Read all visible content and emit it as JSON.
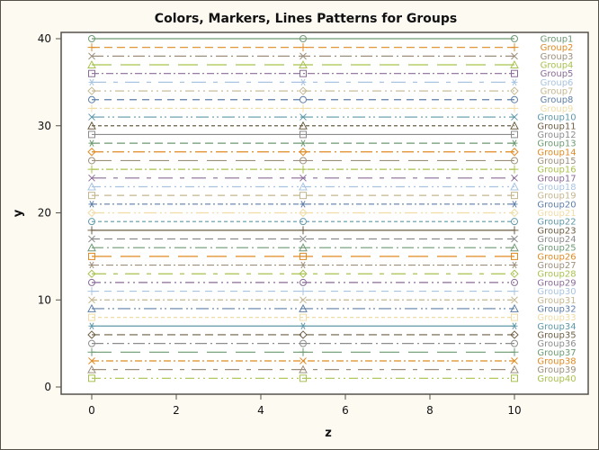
{
  "chart_data": {
    "type": "line",
    "title": "Colors, Markers, Lines Patterns for Groups",
    "xlabel": "z",
    "ylabel": "y",
    "xlim": [
      -0.7,
      11.8
    ],
    "ylim": [
      0,
      40.7
    ],
    "xticks": [
      0,
      2,
      4,
      6,
      8,
      10
    ],
    "yticks": [
      0,
      10,
      20,
      30,
      40
    ],
    "x": [
      0,
      5,
      10
    ],
    "grid": false,
    "legend_position": "inside-right (end labels)",
    "colors": [
      "#6c9a72",
      "#e08a22",
      "#9d8f7c",
      "#a8c24e",
      "#8a6b95",
      "#a8c4e0",
      "#c4b68e",
      "#5e7fa8",
      "#f0dca4",
      "#5e98a8",
      "#6c5d42",
      "#8c8c8c"
    ],
    "markers": [
      "circle",
      "plus",
      "x",
      "triangle",
      "square",
      "asterisk",
      "diamond"
    ],
    "line_patterns": [
      "solid",
      "dash",
      "longdashdot",
      "longdash",
      "dashdot",
      "longshort",
      "dashdotdot",
      "mediumdash",
      "shortdashdot",
      "longdashdotdot",
      "shortdash"
    ],
    "series": [
      {
        "name": "Group1",
        "values": [
          40,
          40,
          40
        ]
      },
      {
        "name": "Group2",
        "values": [
          39,
          39,
          39
        ]
      },
      {
        "name": "Group3",
        "values": [
          38,
          38,
          38
        ]
      },
      {
        "name": "Group4",
        "values": [
          37,
          37,
          37
        ]
      },
      {
        "name": "Group5",
        "values": [
          36,
          36,
          36
        ]
      },
      {
        "name": "Group6",
        "values": [
          35,
          35,
          35
        ]
      },
      {
        "name": "Group7",
        "values": [
          34,
          34,
          34
        ]
      },
      {
        "name": "Group8",
        "values": [
          33,
          33,
          33
        ]
      },
      {
        "name": "Group9",
        "values": [
          32,
          32,
          32
        ]
      },
      {
        "name": "Group10",
        "values": [
          31,
          31,
          31
        ]
      },
      {
        "name": "Group11",
        "values": [
          30,
          30,
          30
        ]
      },
      {
        "name": "Group12",
        "values": [
          29,
          29,
          29
        ]
      },
      {
        "name": "Group13",
        "values": [
          28,
          28,
          28
        ]
      },
      {
        "name": "Group14",
        "values": [
          27,
          27,
          27
        ]
      },
      {
        "name": "Group15",
        "values": [
          26,
          26,
          26
        ]
      },
      {
        "name": "Group16",
        "values": [
          25,
          25,
          25
        ]
      },
      {
        "name": "Group17",
        "values": [
          24,
          24,
          24
        ]
      },
      {
        "name": "Group18",
        "values": [
          23,
          23,
          23
        ]
      },
      {
        "name": "Group19",
        "values": [
          22,
          22,
          22
        ]
      },
      {
        "name": "Group20",
        "values": [
          21,
          21,
          21
        ]
      },
      {
        "name": "Group21",
        "values": [
          20,
          20,
          20
        ]
      },
      {
        "name": "Group22",
        "values": [
          19,
          19,
          19
        ]
      },
      {
        "name": "Group23",
        "values": [
          18,
          18,
          18
        ]
      },
      {
        "name": "Group24",
        "values": [
          17,
          17,
          17
        ]
      },
      {
        "name": "Group25",
        "values": [
          16,
          16,
          16
        ]
      },
      {
        "name": "Group26",
        "values": [
          15,
          15,
          15
        ]
      },
      {
        "name": "Group27",
        "values": [
          14,
          14,
          14
        ]
      },
      {
        "name": "Group28",
        "values": [
          13,
          13,
          13
        ]
      },
      {
        "name": "Group29",
        "values": [
          12,
          12,
          12
        ]
      },
      {
        "name": "Group30",
        "values": [
          11,
          11,
          11
        ]
      },
      {
        "name": "Group31",
        "values": [
          10,
          10,
          10
        ]
      },
      {
        "name": "Group32",
        "values": [
          9,
          9,
          9
        ]
      },
      {
        "name": "Group33",
        "values": [
          8,
          8,
          8
        ]
      },
      {
        "name": "Group34",
        "values": [
          7,
          7,
          7
        ]
      },
      {
        "name": "Group35",
        "values": [
          6,
          6,
          6
        ]
      },
      {
        "name": "Group36",
        "values": [
          5,
          5,
          5
        ]
      },
      {
        "name": "Group37",
        "values": [
          4,
          4,
          4
        ]
      },
      {
        "name": "Group38",
        "values": [
          3,
          3,
          3
        ]
      },
      {
        "name": "Group39",
        "values": [
          2,
          2,
          2
        ]
      },
      {
        "name": "Group40",
        "values": [
          1,
          1,
          1
        ]
      }
    ]
  }
}
